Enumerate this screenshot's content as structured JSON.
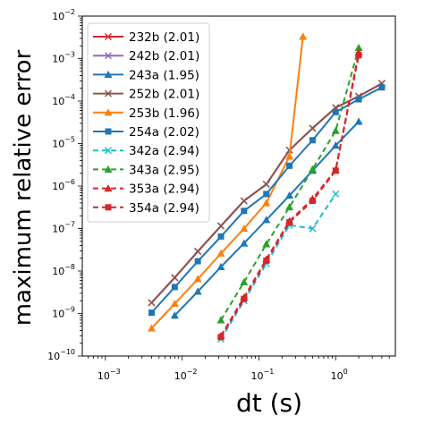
{
  "chart_data": {
    "type": "line",
    "title": "",
    "xlabel": "dt (s)",
    "ylabel": "maximum relative error",
    "xscale": "log",
    "yscale": "log",
    "xlim": [
      0.0005,
      6
    ],
    "ylim": [
      1e-10,
      0.01
    ],
    "x_ticks": [
      {
        "value": 0.001,
        "base": "10",
        "exp": "−3"
      },
      {
        "value": 0.01,
        "base": "10",
        "exp": "−2"
      },
      {
        "value": 0.1,
        "base": "10",
        "exp": "−1"
      },
      {
        "value": 1,
        "base": "10",
        "exp": "0"
      }
    ],
    "y_ticks": [
      {
        "value": 1e-10,
        "base": "10",
        "exp": "−10"
      },
      {
        "value": 1e-09,
        "base": "10",
        "exp": "−9"
      },
      {
        "value": 1e-08,
        "base": "10",
        "exp": "−8"
      },
      {
        "value": 1e-07,
        "base": "10",
        "exp": "−7"
      },
      {
        "value": 1e-06,
        "base": "10",
        "exp": "−6"
      },
      {
        "value": 1e-05,
        "base": "10",
        "exp": "−5"
      },
      {
        "value": 0.0001,
        "base": "10",
        "exp": "−4"
      },
      {
        "value": 0.001,
        "base": "10",
        "exp": "−3"
      },
      {
        "value": 0.01,
        "base": "10",
        "exp": "−2"
      }
    ],
    "grid": false,
    "legend_position": "upper-left",
    "series": [
      {
        "name": "232b (2.01)",
        "color": "#d62728",
        "marker": "x",
        "dashed": false,
        "x": [
          0.004,
          0.008,
          0.016,
          0.032,
          0.064,
          0.125,
          0.25,
          0.5,
          1,
          2,
          4
        ],
        "y": [
          1.8e-09,
          7e-09,
          2.9e-08,
          1.15e-07,
          4.5e-07,
          1.1e-06,
          7e-06,
          2.3e-05,
          7e-05,
          0.00013,
          0.00026
        ]
      },
      {
        "name": "242b (2.01)",
        "color": "#9467bd",
        "marker": "x",
        "dashed": false,
        "x": [
          0.004,
          0.008,
          0.016,
          0.032,
          0.064,
          0.125,
          0.25,
          0.5,
          1,
          2,
          4
        ],
        "y": [
          1.8e-09,
          7e-09,
          2.9e-08,
          1.15e-07,
          4.5e-07,
          1.1e-06,
          7e-06,
          2.3e-05,
          7e-05,
          0.00013,
          0.00026
        ]
      },
      {
        "name": "243a (1.95)",
        "color": "#1f77b4",
        "marker": "triangle",
        "dashed": false,
        "x": [
          0.008,
          0.016,
          0.032,
          0.064,
          0.125,
          0.25,
          0.5,
          1,
          2
        ],
        "y": [
          9e-10,
          3.3e-09,
          1.25e-08,
          4.5e-08,
          1.6e-07,
          6e-07,
          2.3e-06,
          9e-06,
          3.3e-05
        ]
      },
      {
        "name": "252b (2.01)",
        "color": "#8c564b",
        "marker": "x",
        "dashed": false,
        "x": [
          0.004,
          0.008,
          0.016,
          0.032,
          0.064,
          0.125,
          0.25,
          0.5,
          1,
          2,
          4
        ],
        "y": [
          1.8e-09,
          7e-09,
          2.9e-08,
          1.15e-07,
          4.5e-07,
          1.1e-06,
          7e-06,
          2.3e-05,
          7e-05,
          0.00013,
          0.00026
        ]
      },
      {
        "name": "253b (1.96)",
        "color": "#ff7f0e",
        "marker": "triangle",
        "dashed": false,
        "x": [
          0.004,
          0.008,
          0.016,
          0.032,
          0.064,
          0.125,
          0.25,
          0.375
        ],
        "y": [
          4.5e-10,
          1.7e-09,
          6.5e-09,
          2.6e-08,
          1e-07,
          4e-07,
          5e-06,
          0.0033
        ]
      },
      {
        "name": "254a (2.02)",
        "color": "#1f77b4",
        "marker": "square",
        "dashed": false,
        "x": [
          0.004,
          0.008,
          0.016,
          0.032,
          0.064,
          0.125,
          0.25,
          0.5,
          1,
          2,
          4
        ],
        "y": [
          1.05e-09,
          4.2e-09,
          1.7e-08,
          6.5e-08,
          2.6e-07,
          6.5e-07,
          3e-06,
          1.2e-05,
          5.5e-05,
          0.00011,
          0.00021
        ]
      },
      {
        "name": "342a (2.94)",
        "color": "#17becf",
        "marker": "x",
        "dashed": true,
        "x": [
          0.032,
          0.064,
          0.125,
          0.25,
          0.5,
          1
        ],
        "y": [
          2.5e-10,
          2e-09,
          1.5e-08,
          1.2e-07,
          1e-07,
          6.5e-07
        ]
      },
      {
        "name": "343a (2.95)",
        "color": "#2ca02c",
        "marker": "triangle",
        "dashed": true,
        "x": [
          0.032,
          0.064,
          0.125,
          0.25,
          0.5,
          1,
          2
        ],
        "y": [
          7e-10,
          5.5e-09,
          4.3e-08,
          3.2e-07,
          2.5e-06,
          2e-05,
          0.0018
        ]
      },
      {
        "name": "353a (2.94)",
        "color": "#d62728",
        "marker": "triangle",
        "dashed": true,
        "x": [
          0.032,
          0.064,
          0.125,
          0.25,
          0.5,
          1,
          2
        ],
        "y": [
          3e-10,
          2.4e-09,
          1.9e-08,
          1.5e-07,
          5e-07,
          2.4e-06,
          0.0014
        ]
      },
      {
        "name": "354a (2.94)",
        "color": "#d62728",
        "marker": "square",
        "dashed": true,
        "x": [
          0.032,
          0.064,
          0.125,
          0.25,
          0.5,
          1,
          2
        ],
        "y": [
          2.8e-10,
          2.2e-09,
          1.75e-08,
          1.4e-07,
          4.5e-07,
          2.3e-06,
          0.0012
        ]
      }
    ]
  }
}
